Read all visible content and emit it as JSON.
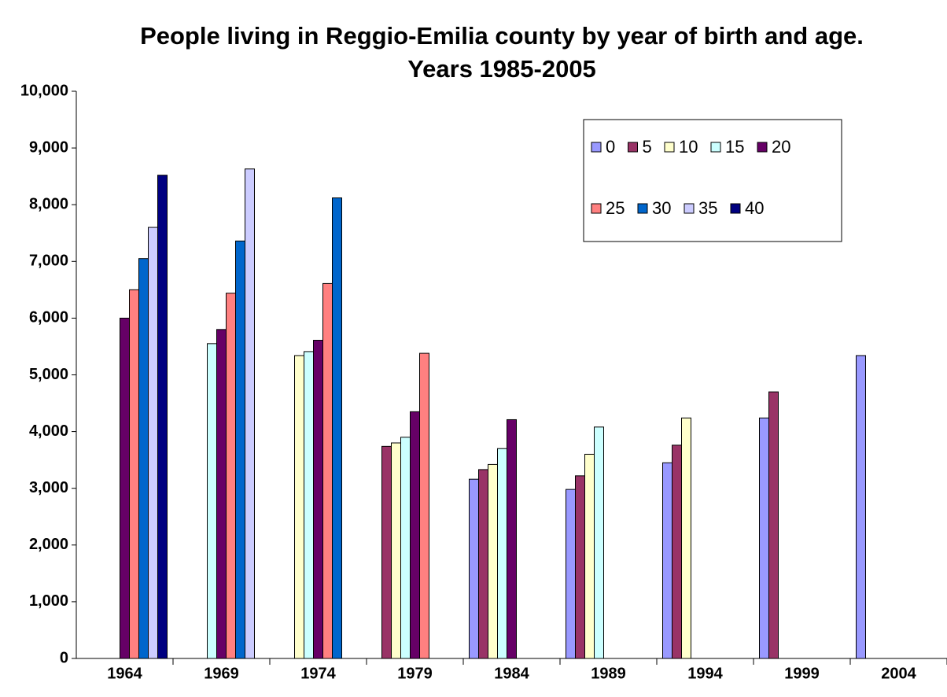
{
  "chart_data": {
    "type": "bar",
    "title": [
      "People living in Reggio-Emilia county by year of birth and age.",
      "Years 1985-2005"
    ],
    "categories": [
      "1964",
      "1969",
      "1974",
      "1979",
      "1984",
      "1989",
      "1994",
      "1999",
      "2004"
    ],
    "series": [
      {
        "name": "0",
        "color": "#9999ff",
        "values": [
          null,
          null,
          null,
          null,
          3160,
          2980,
          3450,
          4240,
          5340
        ]
      },
      {
        "name": "5",
        "color": "#993366",
        "values": [
          null,
          null,
          null,
          3740,
          3330,
          3220,
          3760,
          4700,
          null
        ]
      },
      {
        "name": "10",
        "color": "#ffffcc",
        "values": [
          null,
          null,
          5340,
          3800,
          3420,
          3600,
          4240,
          null,
          null
        ]
      },
      {
        "name": "15",
        "color": "#ccffff",
        "values": [
          null,
          5550,
          5410,
          3900,
          3700,
          4080,
          null,
          null,
          null
        ]
      },
      {
        "name": "20",
        "color": "#660066",
        "values": [
          6000,
          5800,
          5610,
          4350,
          4210,
          null,
          null,
          null,
          null
        ]
      },
      {
        "name": "25",
        "color": "#ff8080",
        "values": [
          6500,
          6440,
          6610,
          5380,
          null,
          null,
          null,
          null,
          null
        ]
      },
      {
        "name": "30",
        "color": "#0066cc",
        "values": [
          7050,
          7360,
          8120,
          null,
          null,
          null,
          null,
          null,
          null
        ]
      },
      {
        "name": "35",
        "color": "#ccccff",
        "values": [
          7600,
          8630,
          null,
          null,
          null,
          null,
          null,
          null,
          null
        ]
      },
      {
        "name": "40",
        "color": "#000080",
        "values": [
          8520,
          null,
          null,
          null,
          null,
          null,
          null,
          null,
          null
        ]
      }
    ],
    "ylim": [
      0,
      10000
    ],
    "yticks": [
      0,
      {
        "value": 1000,
        "label": "1,000"
      },
      {
        "value": 2000,
        "label": "2,000"
      },
      {
        "value": 3000,
        "label": "3,000"
      },
      {
        "value": 4000,
        "label": "4,000"
      },
      {
        "value": 5000,
        "label": "5,000"
      },
      {
        "value": 6000,
        "label": "6,000"
      },
      {
        "value": 7000,
        "label": "7,000"
      },
      {
        "value": 8000,
        "label": "8,000"
      },
      {
        "value": 9000,
        "label": "9,000"
      },
      {
        "value": 10000,
        "label": "10,000"
      }
    ],
    "grid": false,
    "legend": "top-right"
  }
}
